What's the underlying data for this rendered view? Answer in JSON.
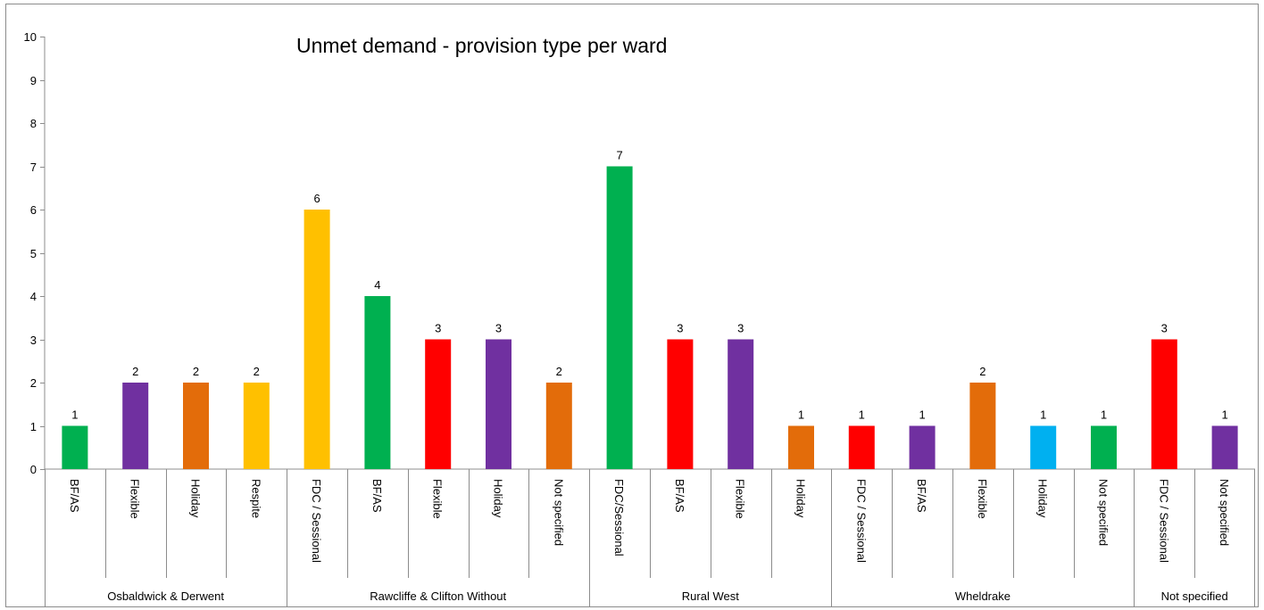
{
  "chart_data": {
    "type": "bar",
    "title": "Unmet demand - provision type per ward",
    "ylim": [
      0,
      10
    ],
    "yticks": [
      0,
      1,
      2,
      3,
      4,
      5,
      6,
      7,
      8,
      9,
      10
    ],
    "grid": false,
    "legend": "none",
    "groups": [
      {
        "name": "Osbaldwick & Derwent",
        "bars": [
          {
            "category": "BF/AS",
            "value": 1,
            "color": "#00B050"
          },
          {
            "category": "Flexible",
            "value": 2,
            "color": "#7030A0"
          },
          {
            "category": "Holiday",
            "value": 2,
            "color": "#E36C0A"
          },
          {
            "category": "Respite",
            "value": 2,
            "color": "#FFC000"
          }
        ]
      },
      {
        "name": "Rawcliffe & Clifton Without",
        "bars": [
          {
            "category": "FDC / Sessional",
            "value": 6,
            "color": "#FFC000"
          },
          {
            "category": "BF/AS",
            "value": 4,
            "color": "#00B050"
          },
          {
            "category": "Flexible",
            "value": 3,
            "color": "#FF0000"
          },
          {
            "category": "Holiday",
            "value": 3,
            "color": "#7030A0"
          },
          {
            "category": "Not specified",
            "value": 2,
            "color": "#E36C0A"
          }
        ]
      },
      {
        "name": "Rural West",
        "bars": [
          {
            "category": "FDC/Sessional",
            "value": 7,
            "color": "#00B050"
          },
          {
            "category": "BF/AS",
            "value": 3,
            "color": "#FF0000"
          },
          {
            "category": "Flexible",
            "value": 3,
            "color": "#7030A0"
          },
          {
            "category": "Holiday",
            "value": 1,
            "color": "#E36C0A"
          }
        ]
      },
      {
        "name": "Wheldrake",
        "bars": [
          {
            "category": "FDC / Sessional",
            "value": 1,
            "color": "#FF0000"
          },
          {
            "category": "BF/AS",
            "value": 1,
            "color": "#7030A0"
          },
          {
            "category": "Flexible",
            "value": 2,
            "color": "#E36C0A"
          },
          {
            "category": "Holiday",
            "value": 1,
            "color": "#00B0F0"
          },
          {
            "category": "Not specified",
            "value": 1,
            "color": "#00B050"
          }
        ]
      },
      {
        "name": "Not specified",
        "bars": [
          {
            "category": "FDC / Sessional",
            "value": 3,
            "color": "#FF0000"
          },
          {
            "category": "Not specified",
            "value": 1,
            "color": "#7030A0"
          }
        ]
      }
    ]
  }
}
